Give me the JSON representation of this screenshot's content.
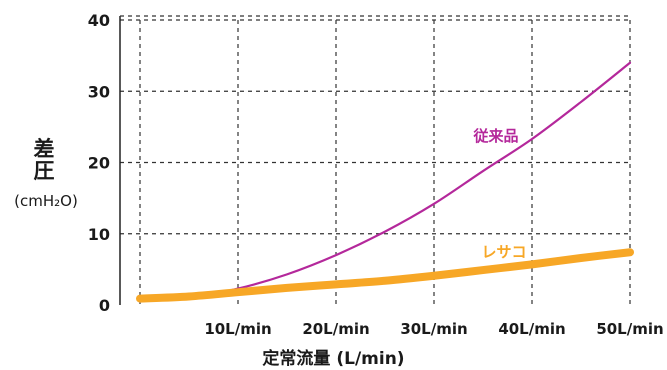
{
  "chart_data": {
    "type": "line",
    "xlabel": "定常流量 (L/min)",
    "ylabel": "差圧",
    "ylabel_unit": "(cmH₂O)",
    "ylim": [
      0,
      40
    ],
    "xlim": [
      0,
      50
    ],
    "y_ticks": [
      "0",
      "10",
      "20",
      "30",
      "40"
    ],
    "x_ticks": [
      {
        "value": 10,
        "label": "10L/min"
      },
      {
        "value": 20,
        "label": "20L/min"
      },
      {
        "value": 30,
        "label": "30L/min"
      },
      {
        "value": 40,
        "label": "40L/min"
      },
      {
        "value": 50,
        "label": "50L/min"
      }
    ],
    "grid": true,
    "series": [
      {
        "name": "従来品",
        "color": "#b4289b",
        "x": [
          0,
          5,
          10,
          15,
          20,
          25,
          30,
          35,
          40,
          45,
          50
        ],
        "y": [
          0.6,
          1.0,
          2.3,
          4.3,
          7.0,
          10.3,
          14.2,
          18.8,
          23.3,
          28.5,
          34.0
        ]
      },
      {
        "name": "レサコ",
        "color": "#f7a726",
        "x": [
          0,
          5,
          10,
          15,
          20,
          25,
          30,
          35,
          40,
          45,
          50
        ],
        "y": [
          0.9,
          1.2,
          1.8,
          2.4,
          2.9,
          3.4,
          4.1,
          4.9,
          5.7,
          6.6,
          7.4
        ]
      }
    ]
  }
}
